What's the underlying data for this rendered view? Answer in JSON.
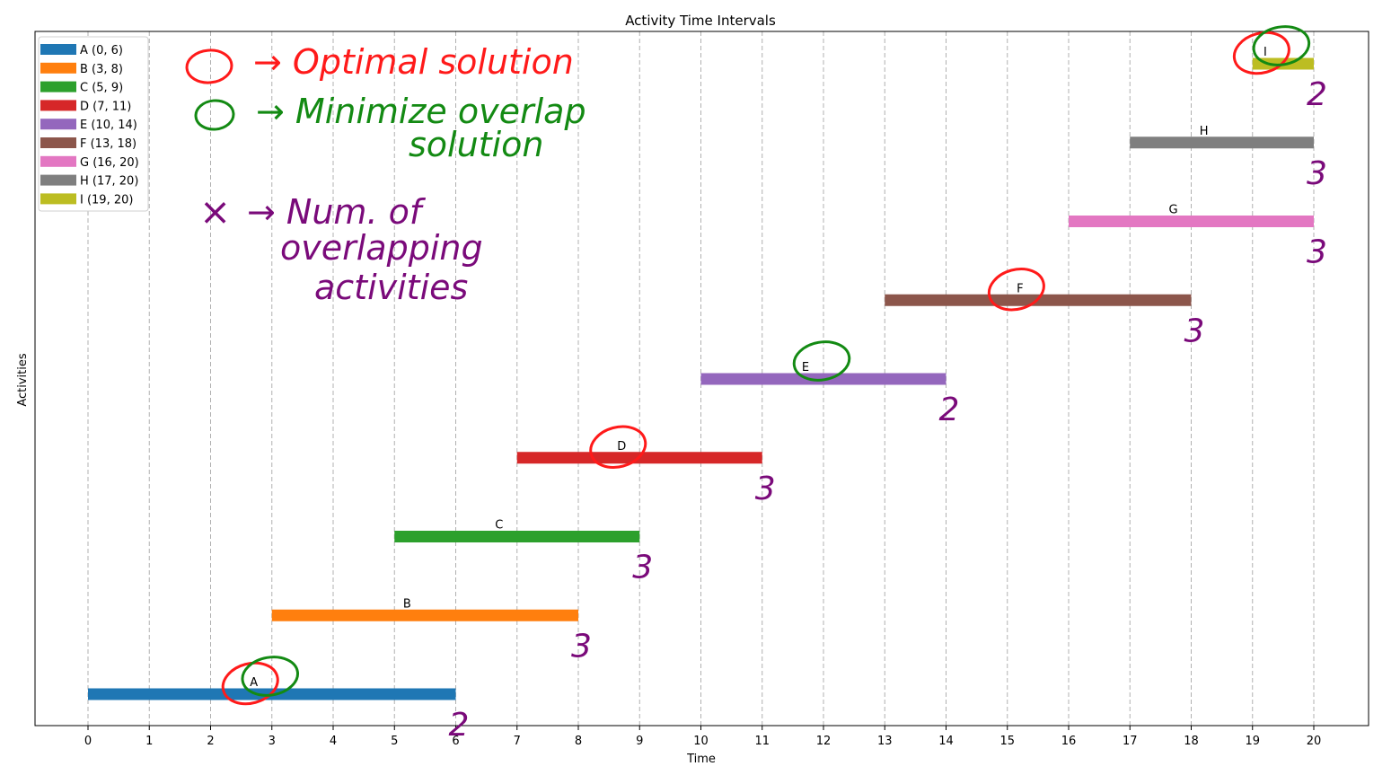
{
  "chart_data": {
    "type": "bar",
    "orientation": "horizontal",
    "title": "Activity Time Intervals",
    "xlabel": "Time",
    "ylabel": "Activities",
    "xlim": [
      -0.9,
      20.9
    ],
    "xticks": [
      0,
      1,
      2,
      3,
      4,
      5,
      6,
      7,
      8,
      9,
      10,
      11,
      12,
      13,
      14,
      15,
      16,
      17,
      18,
      19,
      20
    ],
    "grid": "vertical dashed at each integer",
    "legend_position": "top-left",
    "activities": [
      {
        "name": "A",
        "start": 0,
        "end": 6,
        "legend": "A (0, 6)",
        "color": "#1f77b4"
      },
      {
        "name": "B",
        "start": 3,
        "end": 8,
        "legend": "B (3, 8)",
        "color": "#ff7f0e"
      },
      {
        "name": "C",
        "start": 5,
        "end": 9,
        "legend": "C (5, 9)",
        "color": "#2ca02c"
      },
      {
        "name": "D",
        "start": 7,
        "end": 11,
        "legend": "D (7, 11)",
        "color": "#d62728"
      },
      {
        "name": "E",
        "start": 10,
        "end": 14,
        "legend": "E (10, 14)",
        "color": "#9467bd"
      },
      {
        "name": "F",
        "start": 13,
        "end": 18,
        "legend": "F (13, 18)",
        "color": "#8c564b"
      },
      {
        "name": "G",
        "start": 16,
        "end": 20,
        "legend": "G (16, 20)",
        "color": "#e377c2"
      },
      {
        "name": "H",
        "start": 17,
        "end": 20,
        "legend": "H (17, 20)",
        "color": "#7f7f7f"
      },
      {
        "name": "I",
        "start": 19,
        "end": 20,
        "legend": "I (19, 20)",
        "color": "#bcbd22"
      }
    ],
    "annotations": {
      "overlap_counts": [
        "2",
        "3",
        "3",
        "3",
        "2",
        "3",
        "3",
        "3",
        "2"
      ],
      "optimal_solution_marked": [
        "A",
        "D",
        "F",
        "I"
      ],
      "minimize_overlap_marked": [
        "A",
        "E",
        "I"
      ],
      "notes": [
        {
          "symbol": "○",
          "text": "→ Optimal solution",
          "color": "#ff1a1a"
        },
        {
          "symbol": "○",
          "text": "→ Minimize overlap",
          "text2": "solution",
          "color": "#138a13"
        },
        {
          "symbol": "×",
          "text": "→ Num. of",
          "text2": "overlapping",
          "text3": "activities",
          "color": "#7a0a7a"
        }
      ]
    }
  }
}
